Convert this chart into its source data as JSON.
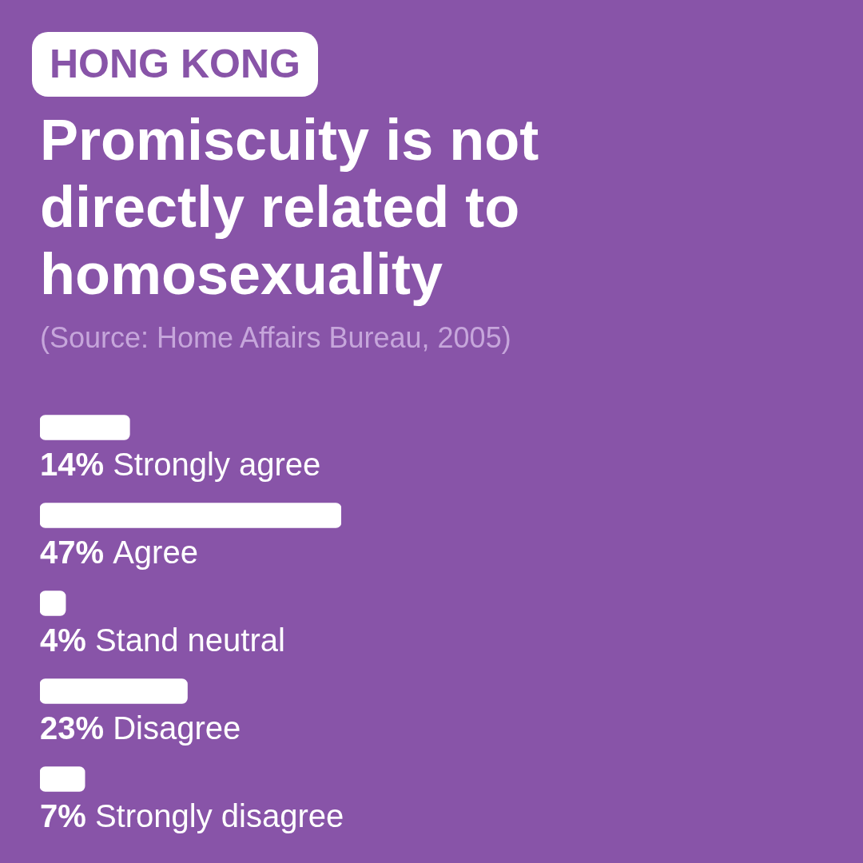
{
  "chart_data": {
    "type": "bar",
    "orientation": "horizontal",
    "subtitle": "HONG KONG",
    "title": "Promiscuity is not directly related to homosexuality",
    "annotations": [
      "(Source: Home Affairs Bureau, 2005)"
    ],
    "categories": [
      "Strongly agree",
      "Agree",
      "Stand neutral",
      "Disagree",
      "Strongly disagree"
    ],
    "values": [
      14,
      47,
      4,
      23,
      7
    ],
    "value_labels": [
      "14%",
      "47%",
      "4%",
      "23%",
      "7%"
    ],
    "color": "#ffffff",
    "tick_labels": "y"
  }
}
